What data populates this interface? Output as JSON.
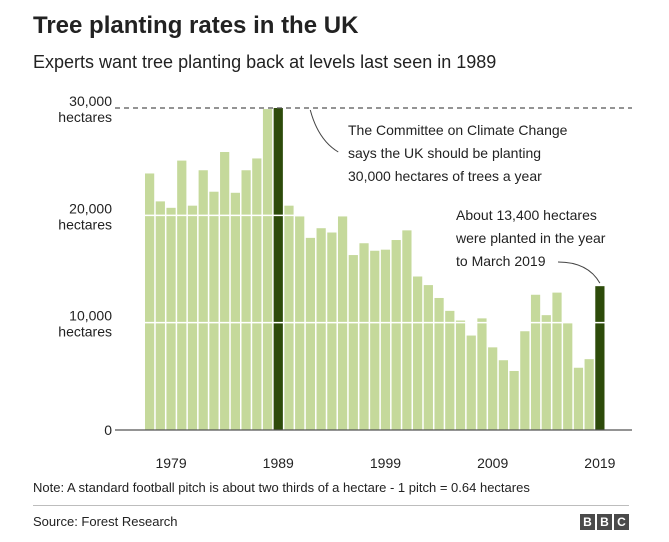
{
  "title": "Tree planting rates in the UK",
  "subtitle": "Experts want tree planting back at levels last seen in 1989",
  "note": "Note: A standard football pitch is about two thirds of a hectare - 1 pitch = 0.64 hectares",
  "source": "Source: Forest Research",
  "logo": [
    "B",
    "B",
    "C"
  ],
  "colors": {
    "bar": "#c5d99b",
    "highlight": "#2d4b0a",
    "gridline": "#ffffff",
    "reference_line": "#555555",
    "text": "#222222"
  },
  "chart_data": {
    "type": "bar",
    "title": "Tree planting rates in the UK",
    "ylabel": "hectares",
    "ylim": [
      0,
      30000
    ],
    "y_ticks": [
      {
        "value": 0,
        "lines": [
          "0"
        ]
      },
      {
        "value": 10000,
        "lines": [
          "10,000",
          "hectares"
        ]
      },
      {
        "value": 20000,
        "lines": [
          "20,000",
          "hectares"
        ]
      },
      {
        "value": 30000,
        "lines": [
          "30,000",
          "hectares"
        ]
      }
    ],
    "x_ticks": [
      "1979",
      "1989",
      "1999",
      "2009",
      "2019"
    ],
    "years": [
      1977,
      1978,
      1979,
      1980,
      1981,
      1982,
      1983,
      1984,
      1985,
      1986,
      1987,
      1988,
      1989,
      1990,
      1991,
      1992,
      1993,
      1994,
      1995,
      1996,
      1997,
      1998,
      1999,
      2000,
      2001,
      2002,
      2003,
      2004,
      2005,
      2006,
      2007,
      2008,
      2009,
      2010,
      2011,
      2012,
      2013,
      2014,
      2015,
      2016,
      2017,
      2018,
      2019
    ],
    "values": [
      23900,
      21300,
      20700,
      25100,
      20900,
      24200,
      22200,
      25900,
      22100,
      24200,
      25300,
      29900,
      30000,
      20900,
      19900,
      17900,
      18800,
      18400,
      19900,
      16300,
      17400,
      16700,
      16800,
      17700,
      18600,
      14300,
      13500,
      12300,
      11100,
      10200,
      8800,
      10400,
      7700,
      6500,
      5500,
      9200,
      12600,
      10700,
      12800,
      10000,
      5800,
      6600,
      13400
    ],
    "highlights": [
      1989,
      2019
    ],
    "reference_line": {
      "value": 30000,
      "style": "dashed"
    },
    "annotations": [
      {
        "target_year": 1989,
        "lines": [
          "The Committee on Climate Change",
          "says the UK should be planting",
          "30,000 hectares of trees a year"
        ]
      },
      {
        "target_year": 2019,
        "lines": [
          "About 13,400 hectares",
          "were planted in the year",
          "to March 2019"
        ]
      }
    ]
  }
}
